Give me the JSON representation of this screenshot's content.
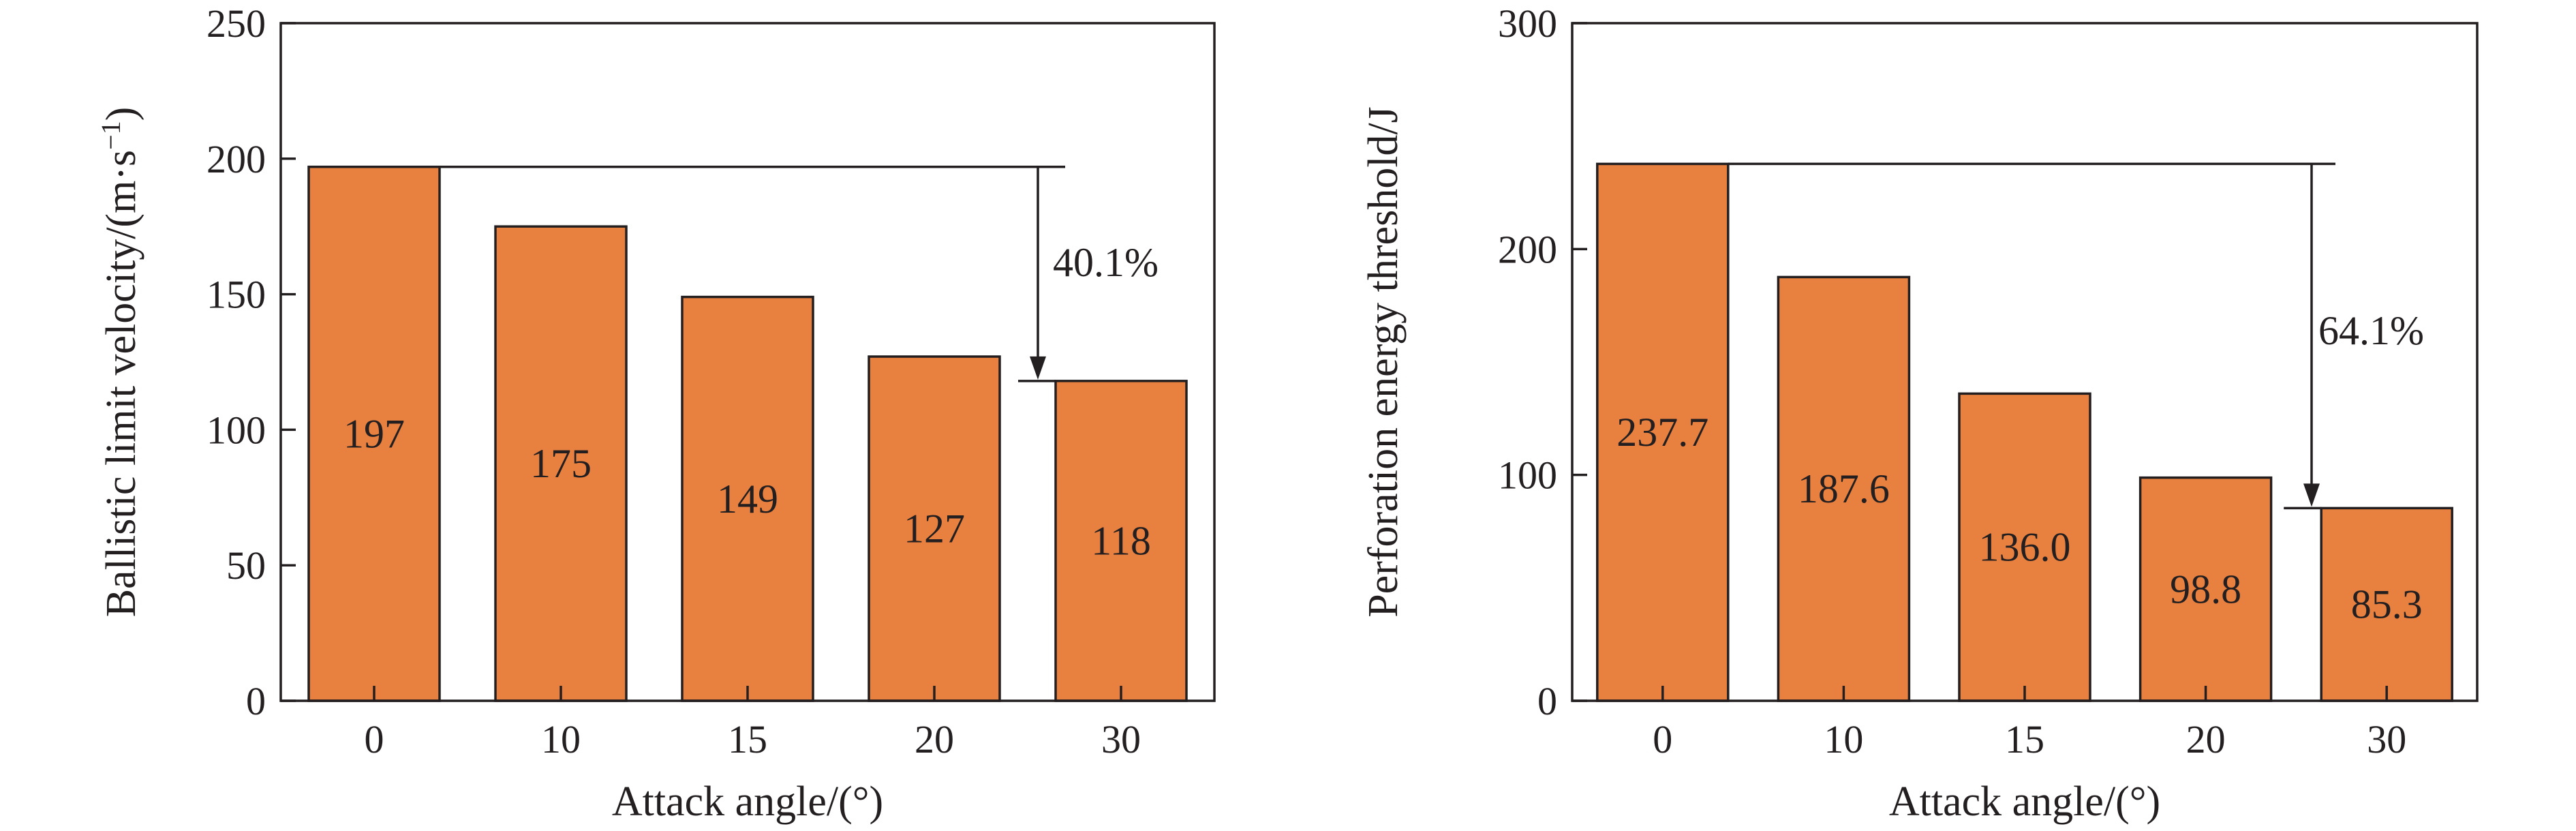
{
  "style": {
    "bar_color": "#e8803f",
    "line_color": "#231f20"
  },
  "chart_data": [
    {
      "type": "bar",
      "categories": [
        "0",
        "10",
        "15",
        "20",
        "30"
      ],
      "values": [
        197,
        175,
        149,
        127,
        118
      ],
      "data_labels": [
        "197",
        "175",
        "149",
        "127",
        "118"
      ],
      "yticks": [
        0,
        50,
        100,
        150,
        200,
        250
      ],
      "ylim": [
        0,
        250
      ],
      "xlabel": "Attack angle/(°)",
      "ylabel": "Ballistic limit velocity/(m·s",
      "ylabel_sup": "−1",
      "ylabel_end": ")",
      "annotation": {
        "text": "40.1%",
        "from_value": 197,
        "to_value": 118
      },
      "grid": false
    },
    {
      "type": "bar",
      "categories": [
        "0",
        "10",
        "15",
        "20",
        "30"
      ],
      "values": [
        237.7,
        187.6,
        136.0,
        98.8,
        85.3
      ],
      "data_labels": [
        "237.7",
        "187.6",
        "136.0",
        "98.8",
        "85.3"
      ],
      "yticks": [
        0,
        100,
        200,
        300
      ],
      "ylim": [
        0,
        300
      ],
      "xlabel": "Attack angle/(°)",
      "ylabel": "Perforation energy threshold/J",
      "annotation": {
        "text": "64.1%",
        "from_value": 237.7,
        "to_value": 85.3
      },
      "grid": false
    }
  ]
}
